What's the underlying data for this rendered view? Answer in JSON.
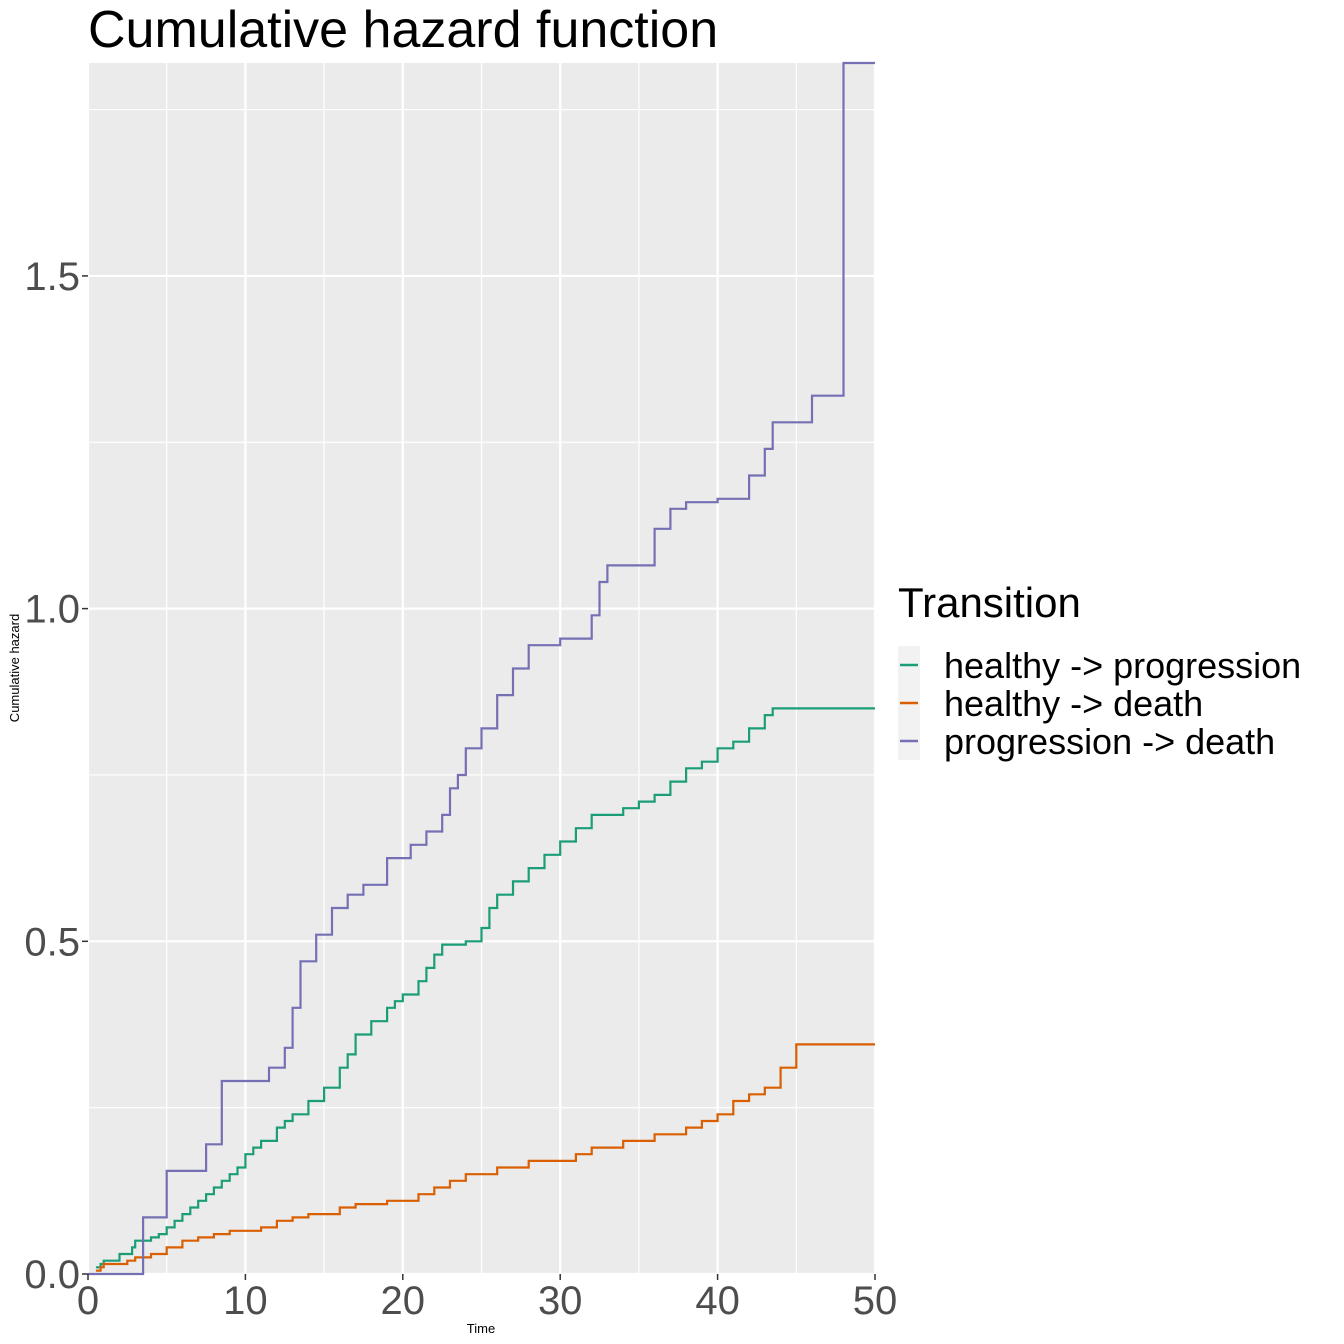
{
  "chart_data": {
    "type": "line",
    "title": "Cumulative hazard function",
    "xlabel": "Time",
    "ylabel": "Cumulative hazard",
    "xlim": [
      0,
      50
    ],
    "ylim": [
      0,
      1.82
    ],
    "x_ticks": [
      0,
      10,
      20,
      30,
      40,
      50
    ],
    "x_tick_labels": [
      "0",
      "10",
      "20",
      "30",
      "40",
      "50"
    ],
    "y_ticks": [
      0,
      0.5,
      1.0,
      1.5
    ],
    "y_tick_labels": [
      "0.0",
      "0.5",
      "1.0",
      "1.5"
    ],
    "grid": true,
    "legend": {
      "title": "Transition",
      "position": "right",
      "entries": [
        "healthy -> progression",
        "healthy -> death",
        "progression -> death"
      ]
    },
    "series": [
      {
        "name": "healthy -> progression",
        "color": "#1b9e77",
        "step": true,
        "x": [
          0.5,
          0.8,
          1.0,
          1.4,
          2.0,
          2.5,
          2.8,
          3.0,
          3.5,
          4.0,
          4.5,
          5.0,
          5.5,
          6.0,
          6.5,
          7.0,
          7.5,
          8.0,
          8.5,
          9.0,
          9.5,
          10.0,
          10.5,
          11.0,
          12.0,
          12.5,
          13.0,
          14.0,
          15.0,
          16.0,
          16.5,
          17.0,
          18.0,
          19.0,
          19.5,
          20.0,
          21.0,
          21.5,
          22.0,
          22.5,
          24.0,
          25.0,
          25.5,
          26.0,
          27.0,
          28.0,
          29.0,
          30.0,
          31.0,
          32.0,
          33.0,
          34.0,
          35.0,
          36.0,
          37.0,
          38.0,
          39.0,
          40.0,
          41.0,
          42.0,
          43.0,
          43.5,
          44.0,
          50.0
        ],
        "y": [
          0.01,
          0.015,
          0.02,
          0.02,
          0.03,
          0.03,
          0.04,
          0.05,
          0.05,
          0.055,
          0.06,
          0.07,
          0.08,
          0.09,
          0.1,
          0.11,
          0.12,
          0.13,
          0.14,
          0.15,
          0.16,
          0.18,
          0.19,
          0.2,
          0.22,
          0.23,
          0.24,
          0.26,
          0.28,
          0.31,
          0.33,
          0.36,
          0.38,
          0.4,
          0.41,
          0.42,
          0.44,
          0.46,
          0.48,
          0.495,
          0.5,
          0.52,
          0.55,
          0.57,
          0.59,
          0.61,
          0.63,
          0.65,
          0.67,
          0.69,
          0.69,
          0.7,
          0.71,
          0.72,
          0.74,
          0.76,
          0.77,
          0.79,
          0.8,
          0.82,
          0.84,
          0.85,
          0.85,
          0.85
        ]
      },
      {
        "name": "healthy -> death",
        "color": "#d95f02",
        "step": true,
        "x": [
          0.5,
          0.8,
          1.0,
          2.0,
          2.5,
          3.0,
          4.0,
          5.0,
          6.0,
          7.0,
          8.0,
          9.0,
          11.0,
          12.0,
          13.0,
          14.0,
          16.0,
          17.0,
          19.0,
          21.0,
          22.0,
          23.0,
          24.0,
          26.0,
          28.0,
          30.0,
          31.0,
          32.0,
          34.0,
          36.0,
          38.0,
          39.0,
          40.0,
          41.0,
          42.0,
          43.0,
          44.0,
          45.0,
          50.0
        ],
        "y": [
          0.005,
          0.01,
          0.015,
          0.015,
          0.02,
          0.025,
          0.03,
          0.04,
          0.05,
          0.055,
          0.06,
          0.065,
          0.07,
          0.08,
          0.085,
          0.09,
          0.1,
          0.105,
          0.11,
          0.12,
          0.13,
          0.14,
          0.15,
          0.16,
          0.17,
          0.17,
          0.18,
          0.19,
          0.2,
          0.21,
          0.22,
          0.23,
          0.24,
          0.26,
          0.27,
          0.28,
          0.31,
          0.345,
          0.345
        ]
      },
      {
        "name": "progression -> death",
        "color": "#7570b3",
        "step": true,
        "x": [
          0.0,
          3.5,
          5.0,
          7.5,
          8.5,
          11.5,
          12.5,
          13.0,
          13.5,
          14.5,
          15.5,
          16.5,
          17.5,
          19.0,
          20.5,
          21.5,
          22.5,
          23.0,
          23.5,
          24.0,
          25.0,
          26.0,
          27.0,
          28.0,
          30.0,
          32.0,
          32.5,
          33.0,
          35.0,
          36.0,
          37.0,
          38.0,
          40.0,
          42.0,
          43.0,
          43.5,
          44.5,
          46.0,
          48.0,
          50.0
        ],
        "y": [
          0.0,
          0.085,
          0.155,
          0.195,
          0.29,
          0.31,
          0.34,
          0.4,
          0.47,
          0.51,
          0.55,
          0.57,
          0.585,
          0.625,
          0.645,
          0.665,
          0.69,
          0.73,
          0.75,
          0.79,
          0.82,
          0.87,
          0.91,
          0.945,
          0.955,
          0.99,
          1.04,
          1.065,
          1.065,
          1.12,
          1.15,
          1.16,
          1.165,
          1.2,
          1.24,
          1.28,
          1.28,
          1.32,
          1.82,
          1.82
        ]
      }
    ]
  }
}
